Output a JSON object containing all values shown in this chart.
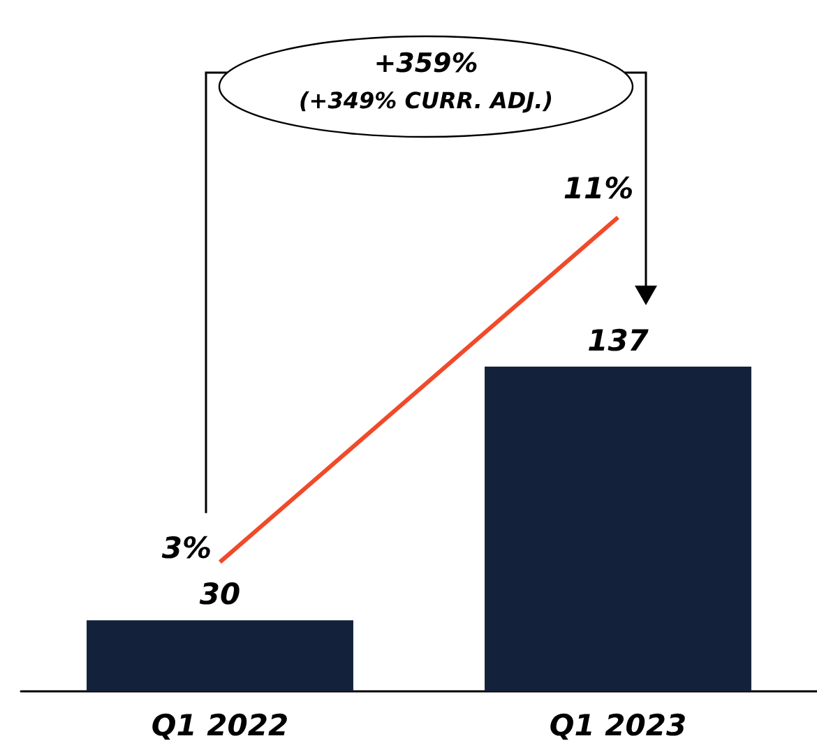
{
  "chart_data": {
    "type": "bar",
    "categories": [
      "Q1 2022",
      "Q1 2023"
    ],
    "series": [
      {
        "color": "#13223a",
        "values": [
          30,
          137
        ]
      },
      {
        "type": "line",
        "axis": "y2",
        "color": "#f04a2a",
        "values": [
          3,
          11
        ],
        "value_labels": [
          "3%",
          "11%"
        ]
      }
    ],
    "data_labels": true,
    "marker": "none",
    "grid": false,
    "tick_labels": "x",
    "annotations": [
      "+359%",
      "(+349% CURR. ADJ.)"
    ]
  }
}
